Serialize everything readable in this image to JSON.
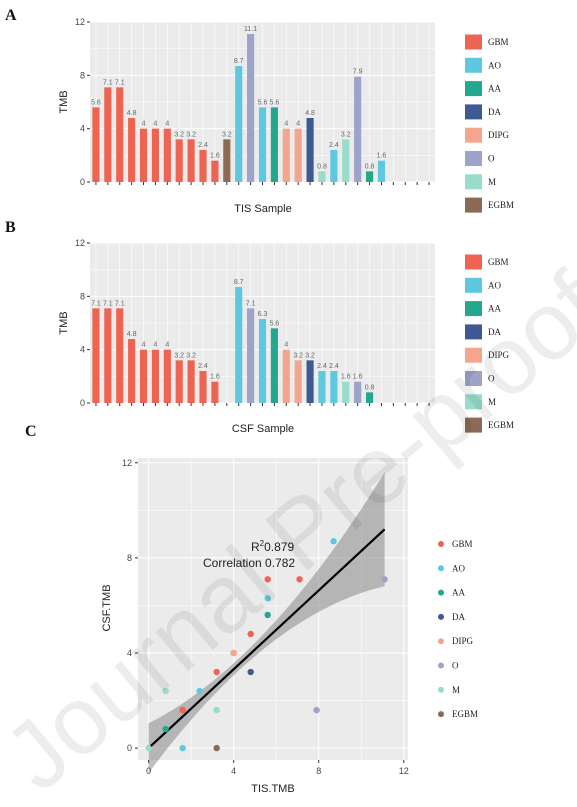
{
  "watermark": "Journal Pre-proofs",
  "colors": {
    "GBM": "#EE6452",
    "AO": "#5EC8E0",
    "AA": "#24A78F",
    "DA": "#3F5A93",
    "DIPG": "#F4A58E",
    "O": "#9DA3C9",
    "M": "#98DCCB",
    "EGBM": "#8C6A55"
  },
  "legend": [
    "GBM",
    "AO",
    "AA",
    "DA",
    "DIPG",
    "O",
    "M",
    "EGBM"
  ],
  "chart_data": [
    {
      "panel": "A",
      "type": "bar",
      "xlabel": "TIS Sample",
      "ylabel": "TMB",
      "ylim": [
        0,
        12
      ],
      "yticks": [
        0,
        4,
        8,
        12
      ],
      "grid": true,
      "legend_position": "right",
      "n_slots": 29,
      "bars": [
        {
          "slot": 1,
          "group": "GBM",
          "value": 5.6
        },
        {
          "slot": 2,
          "group": "GBM",
          "value": 7.1
        },
        {
          "slot": 3,
          "group": "GBM",
          "value": 7.1
        },
        {
          "slot": 4,
          "group": "GBM",
          "value": 4.8
        },
        {
          "slot": 5,
          "group": "GBM",
          "value": 4
        },
        {
          "slot": 6,
          "group": "GBM",
          "value": 4
        },
        {
          "slot": 7,
          "group": "GBM",
          "value": 4
        },
        {
          "slot": 8,
          "group": "GBM",
          "value": 3.2
        },
        {
          "slot": 9,
          "group": "GBM",
          "value": 3.2
        },
        {
          "slot": 10,
          "group": "GBM",
          "value": 2.4
        },
        {
          "slot": 11,
          "group": "GBM",
          "value": 1.6
        },
        {
          "slot": 12,
          "group": "EGBM",
          "value": 3.2
        },
        {
          "slot": 13,
          "group": "AO",
          "value": 8.7
        },
        {
          "slot": 14,
          "group": "O",
          "value": 11.1
        },
        {
          "slot": 15,
          "group": "AO",
          "value": 5.6
        },
        {
          "slot": 16,
          "group": "AA",
          "value": 5.6
        },
        {
          "slot": 17,
          "group": "DIPG",
          "value": 4
        },
        {
          "slot": 18,
          "group": "DIPG",
          "value": 4
        },
        {
          "slot": 19,
          "group": "DA",
          "value": 4.8
        },
        {
          "slot": 20,
          "group": "M",
          "value": 0.8
        },
        {
          "slot": 21,
          "group": "AO",
          "value": 2.4
        },
        {
          "slot": 22,
          "group": "M",
          "value": 3.2
        },
        {
          "slot": 23,
          "group": "O",
          "value": 7.9
        },
        {
          "slot": 24,
          "group": "AA",
          "value": 0.8
        },
        {
          "slot": 25,
          "group": "AO",
          "value": 1.6
        }
      ]
    },
    {
      "panel": "B",
      "type": "bar",
      "xlabel": "CSF Sample",
      "ylabel": "TMB",
      "ylim": [
        0,
        12
      ],
      "yticks": [
        0,
        4,
        8,
        12
      ],
      "grid": true,
      "legend_position": "right",
      "n_slots": 29,
      "bars": [
        {
          "slot": 1,
          "group": "GBM",
          "value": 7.1
        },
        {
          "slot": 2,
          "group": "GBM",
          "value": 7.1
        },
        {
          "slot": 3,
          "group": "GBM",
          "value": 7.1
        },
        {
          "slot": 4,
          "group": "GBM",
          "value": 4.8
        },
        {
          "slot": 5,
          "group": "GBM",
          "value": 4
        },
        {
          "slot": 6,
          "group": "GBM",
          "value": 4
        },
        {
          "slot": 7,
          "group": "GBM",
          "value": 4
        },
        {
          "slot": 8,
          "group": "GBM",
          "value": 3.2
        },
        {
          "slot": 9,
          "group": "GBM",
          "value": 3.2
        },
        {
          "slot": 10,
          "group": "GBM",
          "value": 2.4
        },
        {
          "slot": 11,
          "group": "GBM",
          "value": 1.6
        },
        {
          "slot": 13,
          "group": "AO",
          "value": 8.7
        },
        {
          "slot": 14,
          "group": "O",
          "value": 7.1
        },
        {
          "slot": 15,
          "group": "AO",
          "value": 6.3
        },
        {
          "slot": 16,
          "group": "AA",
          "value": 5.6
        },
        {
          "slot": 17,
          "group": "DIPG",
          "value": 4
        },
        {
          "slot": 18,
          "group": "DIPG",
          "value": 3.2
        },
        {
          "slot": 19,
          "group": "DA",
          "value": 3.2
        },
        {
          "slot": 20,
          "group": "AO",
          "value": 2.4
        },
        {
          "slot": 21,
          "group": "AO",
          "value": 2.4
        },
        {
          "slot": 22,
          "group": "M",
          "value": 1.6
        },
        {
          "slot": 23,
          "group": "O",
          "value": 1.6
        },
        {
          "slot": 24,
          "group": "AA",
          "value": 0.8
        }
      ]
    },
    {
      "panel": "C",
      "type": "scatter",
      "xlabel": "TIS.TMB",
      "ylabel": "CSF.TMB",
      "xlim": [
        -0.5,
        12.2
      ],
      "ylim": [
        -0.5,
        12.2
      ],
      "xticks": [
        0,
        4,
        8,
        12
      ],
      "yticks": [
        0,
        4,
        8,
        12
      ],
      "grid": true,
      "legend_position": "right",
      "annotations": {
        "r2_label": "R",
        "r2_sup": "2",
        "r2_value": "0.879",
        "correlation": "Correlation 0.782"
      },
      "fit": {
        "x0": 0,
        "y0": 0,
        "x1": 11.1,
        "y1": 9.2
      },
      "points": [
        {
          "x": 7.1,
          "y": 7.1,
          "group": "GBM"
        },
        {
          "x": 5.6,
          "y": 7.1,
          "group": "GBM"
        },
        {
          "x": 4.8,
          "y": 4.8,
          "group": "GBM"
        },
        {
          "x": 4,
          "y": 4,
          "group": "GBM"
        },
        {
          "x": 3.2,
          "y": 3.2,
          "group": "GBM"
        },
        {
          "x": 1.6,
          "y": 1.6,
          "group": "GBM"
        },
        {
          "x": 8.7,
          "y": 8.7,
          "group": "AO"
        },
        {
          "x": 5.6,
          "y": 6.3,
          "group": "AO"
        },
        {
          "x": 2.4,
          "y": 2.4,
          "group": "AO"
        },
        {
          "x": 1.6,
          "y": 0,
          "group": "AO"
        },
        {
          "x": 5.6,
          "y": 5.6,
          "group": "AA"
        },
        {
          "x": 0.8,
          "y": 0.8,
          "group": "AA"
        },
        {
          "x": 4.8,
          "y": 3.2,
          "group": "DA"
        },
        {
          "x": 4,
          "y": 4,
          "group": "DIPG"
        },
        {
          "x": 11.1,
          "y": 7.1,
          "group": "O"
        },
        {
          "x": 7.9,
          "y": 1.6,
          "group": "O"
        },
        {
          "x": 0.8,
          "y": 2.4,
          "group": "M"
        },
        {
          "x": 3.2,
          "y": 1.6,
          "group": "M"
        },
        {
          "x": 0,
          "y": 0,
          "group": "M"
        },
        {
          "x": 3.2,
          "y": 0,
          "group": "EGBM"
        }
      ]
    }
  ]
}
